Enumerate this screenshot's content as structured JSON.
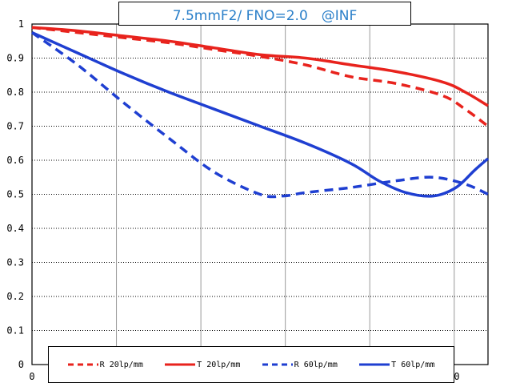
{
  "chart_data": {
    "type": "line",
    "title": "7.5mmF2/ FNO=2.0　@INF",
    "xlim": [
      0,
      1
    ],
    "ylim": [
      0,
      1
    ],
    "y_ticks": [
      "0",
      "0.1",
      "0.2",
      "0.3",
      "0.4",
      "0.5",
      "0.6",
      "0.7",
      "0.8",
      "0.9",
      "1"
    ],
    "x_tick_labels": [
      "0",
      "0"
    ],
    "grid": true,
    "legend_position": "bottom",
    "series": [
      {
        "name": "R 20lp/mm",
        "color": "#e8231d",
        "dash": true,
        "x": [
          0,
          0.1,
          0.2,
          0.3,
          0.4,
          0.5,
          0.6,
          0.7,
          0.8,
          0.9,
          0.95,
          1.0
        ],
        "y": [
          0.99,
          0.975,
          0.96,
          0.945,
          0.925,
          0.905,
          0.88,
          0.845,
          0.825,
          0.79,
          0.75,
          0.7
        ]
      },
      {
        "name": "T 20lp/mm",
        "color": "#e8231d",
        "dash": false,
        "x": [
          0,
          0.1,
          0.2,
          0.3,
          0.4,
          0.5,
          0.6,
          0.7,
          0.8,
          0.9,
          0.95,
          1.0
        ],
        "y": [
          0.99,
          0.98,
          0.965,
          0.95,
          0.93,
          0.91,
          0.9,
          0.88,
          0.86,
          0.83,
          0.8,
          0.76
        ]
      },
      {
        "name": "R 60lp/mm",
        "color": "#1f3fd1",
        "dash": true,
        "x": [
          0,
          0.1,
          0.2,
          0.3,
          0.4,
          0.5,
          0.55,
          0.6,
          0.7,
          0.8,
          0.88,
          0.95,
          1.0
        ],
        "y": [
          0.975,
          0.88,
          0.77,
          0.665,
          0.565,
          0.5,
          0.495,
          0.505,
          0.52,
          0.54,
          0.55,
          0.53,
          0.5
        ]
      },
      {
        "name": "T 60lp/mm",
        "color": "#1f3fd1",
        "dash": false,
        "x": [
          0,
          0.1,
          0.2,
          0.3,
          0.4,
          0.5,
          0.6,
          0.7,
          0.76,
          0.82,
          0.88,
          0.93,
          0.97,
          1.0
        ],
        "y": [
          0.975,
          0.915,
          0.855,
          0.8,
          0.75,
          0.7,
          0.65,
          0.59,
          0.54,
          0.505,
          0.495,
          0.52,
          0.57,
          0.605
        ]
      }
    ]
  }
}
